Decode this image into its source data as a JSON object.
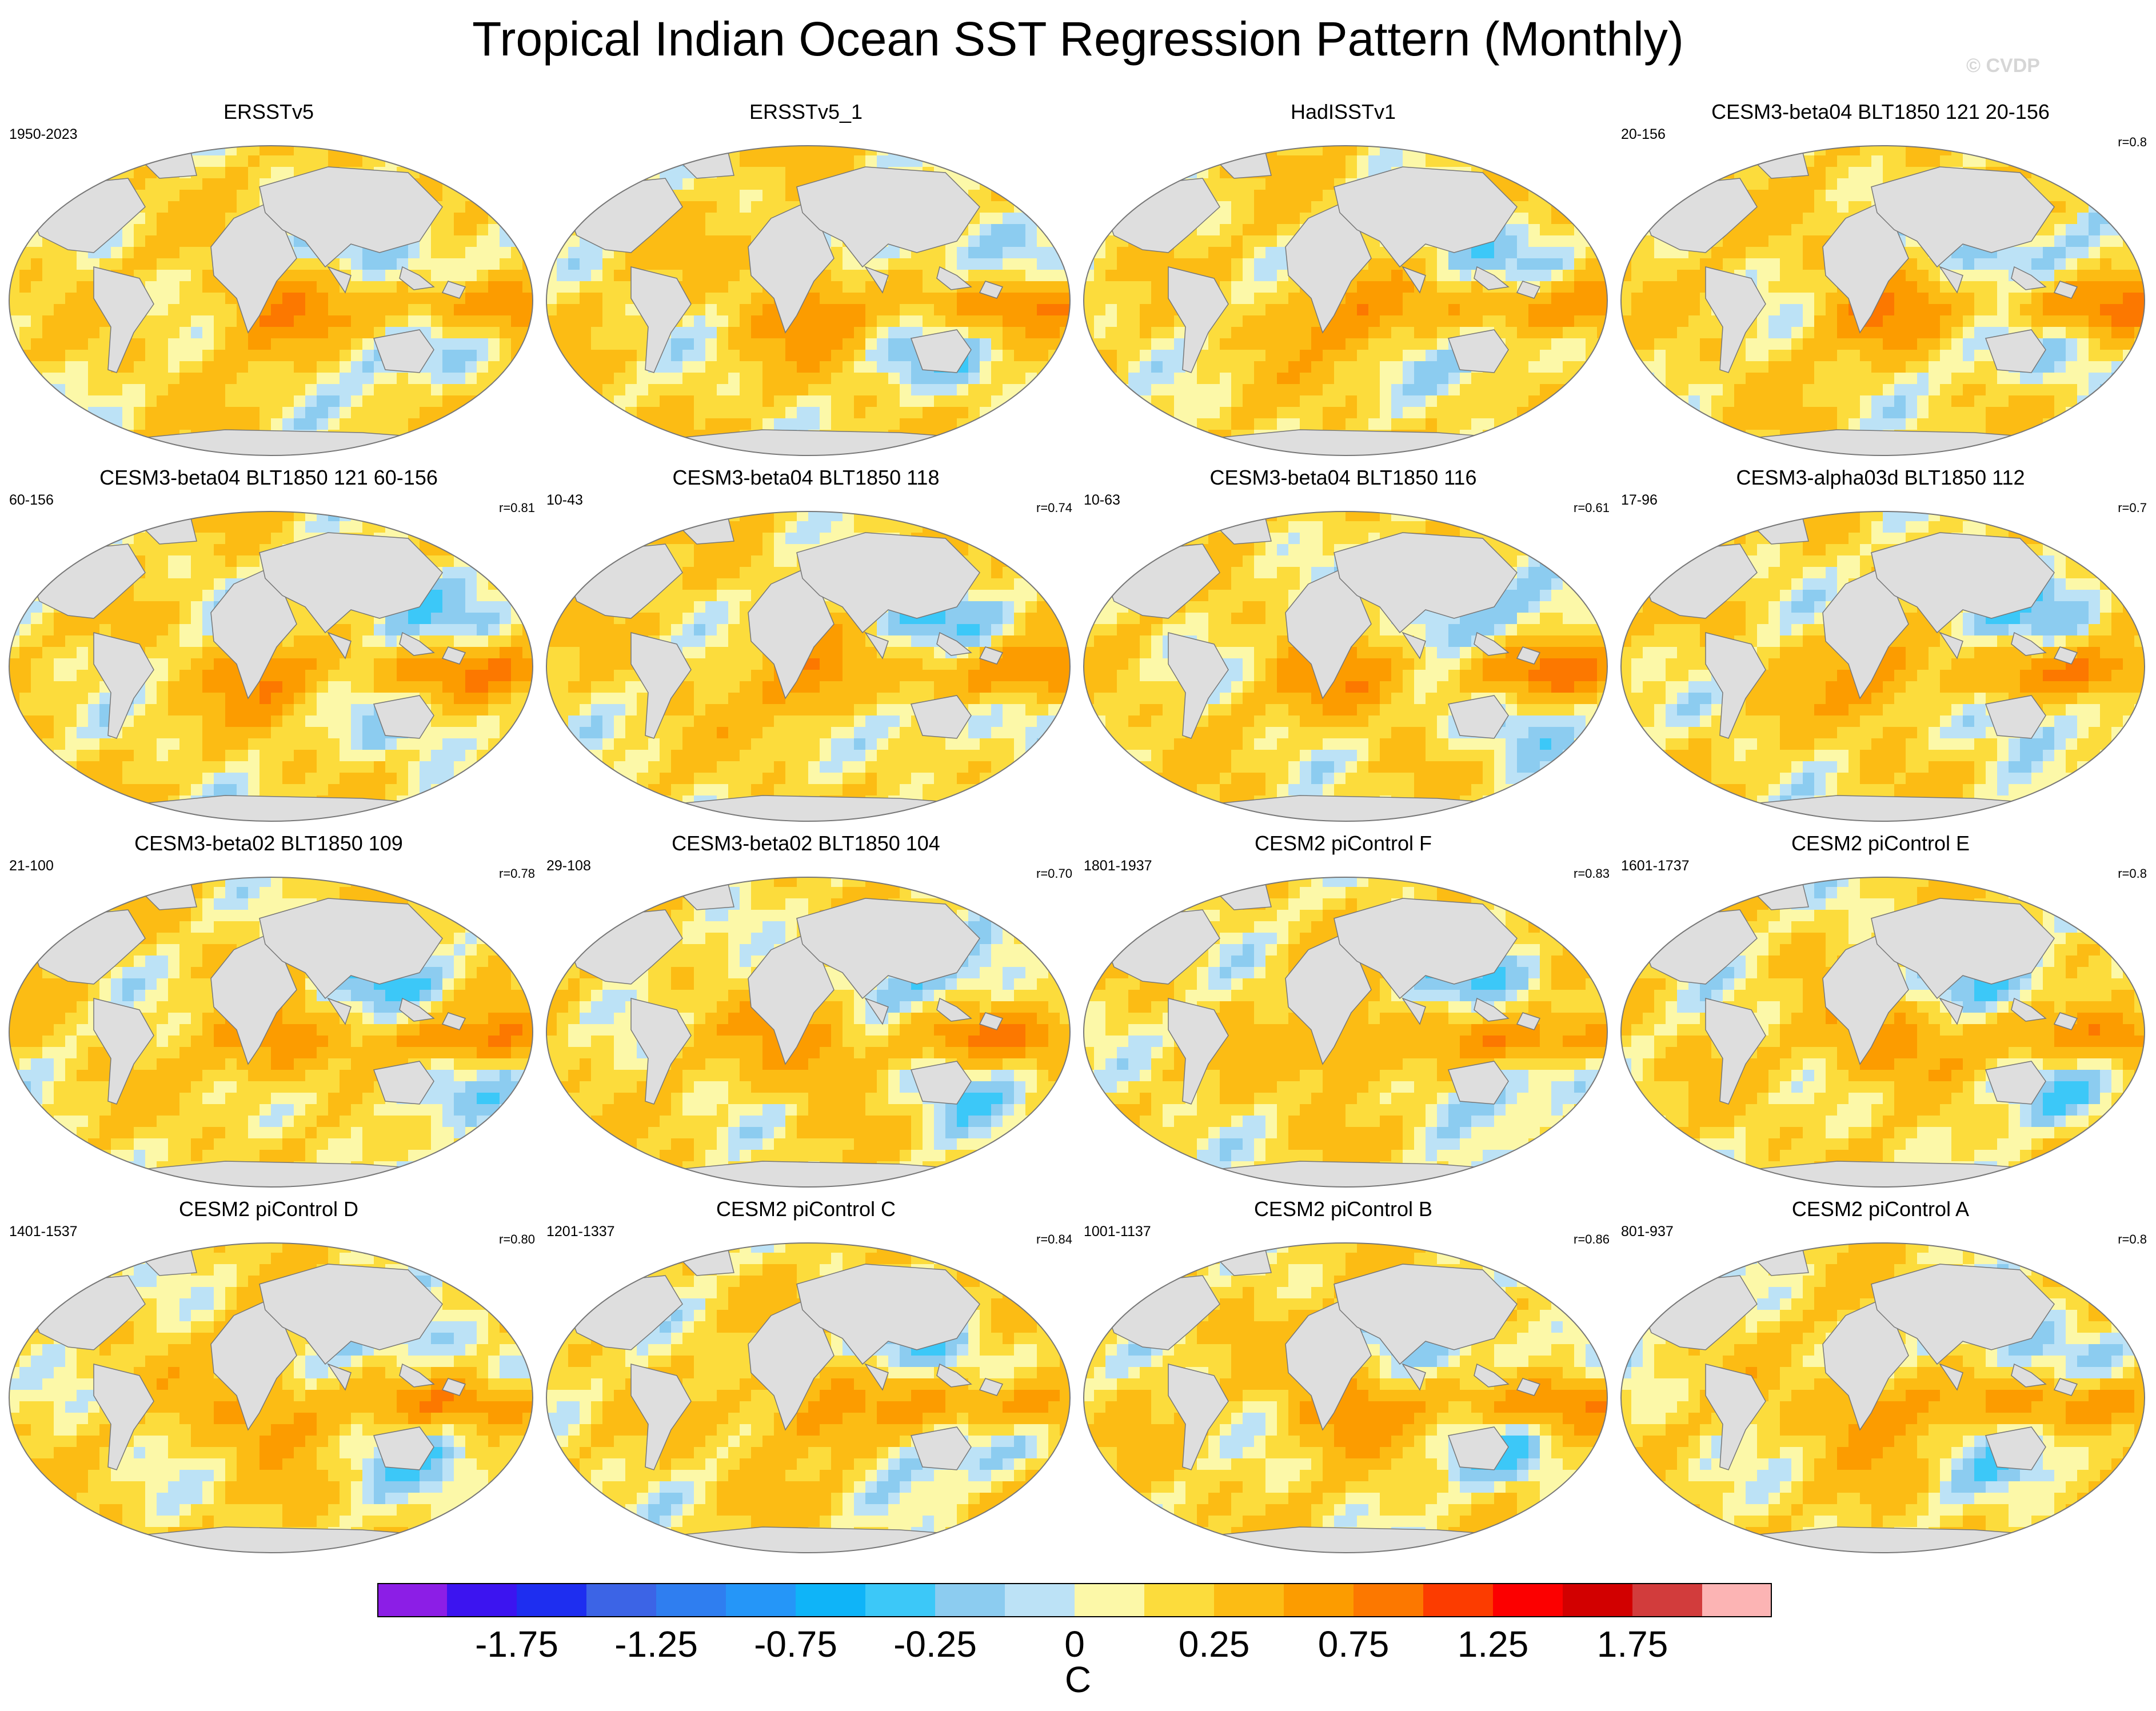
{
  "header": {
    "title": "Tropical Indian Ocean SST Regression Pattern (Monthly)",
    "watermark": "© CVDP"
  },
  "land_color": "#dedede",
  "chart_data": {
    "type": "map-grid",
    "projection": "robinson",
    "variable": "SST regression onto Tropical Indian Ocean SST index",
    "units": "C",
    "panels": [
      {
        "title": "ERSSTv5",
        "period": "1950-2023",
        "r": ""
      },
      {
        "title": "ERSSTv5_1",
        "period": "",
        "r": ""
      },
      {
        "title": "HadISSTv1",
        "period": "",
        "r": ""
      },
      {
        "title": "CESM3-beta04 BLT1850 121 20-156",
        "period": "20-156",
        "r": "r=0.8"
      },
      {
        "title": "CESM3-beta04 BLT1850 121 60-156",
        "period": "60-156",
        "r": "r=0.81"
      },
      {
        "title": "CESM3-beta04 BLT1850 118",
        "period": "10-43",
        "r": "r=0.74"
      },
      {
        "title": "CESM3-beta04 BLT1850 116",
        "period": "10-63",
        "r": "r=0.61"
      },
      {
        "title": "CESM3-alpha03d BLT1850 112",
        "period": "17-96",
        "r": "r=0.7"
      },
      {
        "title": "CESM3-beta02 BLT1850 109",
        "period": "21-100",
        "r": "r=0.78"
      },
      {
        "title": "CESM3-beta02 BLT1850 104",
        "period": "29-108",
        "r": "r=0.70"
      },
      {
        "title": "CESM2 piControl F",
        "period": "1801-1937",
        "r": "r=0.83"
      },
      {
        "title": "CESM2 piControl E",
        "period": "1601-1737",
        "r": "r=0.8"
      },
      {
        "title": "CESM2 piControl D",
        "period": "1401-1537",
        "r": "r=0.80"
      },
      {
        "title": "CESM2 piControl C",
        "period": "1201-1337",
        "r": "r=0.84"
      },
      {
        "title": "CESM2 piControl B",
        "period": "1001-1137",
        "r": "r=0.86"
      },
      {
        "title": "CESM2 piControl A",
        "period": "801-937",
        "r": "r=0.8"
      }
    ],
    "colorbar": {
      "units": "C",
      "colors": [
        "#8c1ee6",
        "#3c14f0",
        "#1e2ef0",
        "#3c64e6",
        "#2f7ef0",
        "#2596f8",
        "#0fb4f8",
        "#3cc8f8",
        "#8cccf0",
        "#bce2f6",
        "#fcf8a8",
        "#fcdc3c",
        "#fcbc14",
        "#fc9c00",
        "#fc7800",
        "#fc3c00",
        "#fc0000",
        "#d20000",
        "#d23c3c",
        "#fcb4b4"
      ],
      "levels": [
        -2.25,
        -2.0,
        -1.75,
        -1.5,
        -1.25,
        -1.0,
        -0.75,
        -0.5,
        -0.25,
        -0.1,
        0,
        0.1,
        0.25,
        0.5,
        0.75,
        1.0,
        1.25,
        1.5,
        1.75,
        2.0,
        2.25
      ],
      "tick_labels": [
        "-1.75",
        "-1.25",
        "-0.75",
        "-0.25",
        "0",
        "0.25",
        "0.75",
        "1.25",
        "1.75"
      ]
    }
  }
}
